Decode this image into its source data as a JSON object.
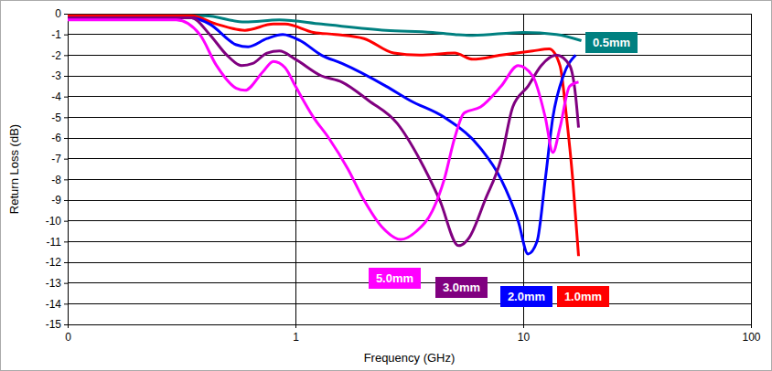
{
  "chart_data": {
    "type": "line",
    "x_label": "Frequency (GHz)",
    "y_label": "Return Loss (dB)",
    "log": "x",
    "grid": true,
    "xlim": [
      0.1,
      100
    ],
    "xticks": [
      {
        "value": 0.1,
        "label": "0"
      },
      1,
      10,
      100
    ],
    "ylim": [
      -15,
      0
    ],
    "yticks": [
      -15,
      -14,
      -13,
      -12,
      -11,
      -10,
      -9,
      -8,
      -7,
      -6,
      -5,
      -4,
      -3,
      -2,
      -1,
      0
    ],
    "series": [
      {
        "name": "0.5mm",
        "color": "#008080",
        "x": [
          0.1,
          0.4,
          0.6,
          0.85,
          1.3,
          2.5,
          4,
          5,
          6,
          10,
          14,
          18
        ],
        "values": [
          -0.1,
          -0.1,
          -0.4,
          -0.3,
          -0.5,
          -0.8,
          -0.9,
          -1.0,
          -1.05,
          -0.9,
          -1.0,
          -1.3
        ]
      },
      {
        "name": "1.0mm",
        "color": "#ff0000",
        "x": [
          0.1,
          0.35,
          0.45,
          0.6,
          0.8,
          0.9,
          1.2,
          1.5,
          2,
          2.7,
          3.5,
          5,
          6,
          8,
          11,
          13,
          14.5,
          15.5,
          16.5,
          17.5
        ],
        "values": [
          -0.1,
          -0.1,
          -0.5,
          -0.8,
          -0.5,
          -0.5,
          -0.9,
          -1.0,
          -1.2,
          -1.9,
          -2.0,
          -1.9,
          -2.2,
          -2.0,
          -1.8,
          -1.7,
          -2.5,
          -5,
          -8,
          -11.7
        ]
      },
      {
        "name": "2.0mm",
        "color": "#0000ff",
        "x": [
          0.1,
          0.35,
          0.42,
          0.55,
          0.62,
          0.75,
          0.88,
          1.05,
          1.3,
          1.6,
          2.5,
          3.2,
          4.5,
          6.5,
          8,
          9.5,
          10.5,
          11.5,
          12.5,
          13.5,
          15,
          17
        ],
        "values": [
          -0.2,
          -0.2,
          -0.5,
          -1.5,
          -1.6,
          -1.2,
          -1.0,
          -1.3,
          -2.0,
          -2.4,
          -3.5,
          -4.2,
          -5.0,
          -6.5,
          -8,
          -10,
          -11.6,
          -11,
          -8,
          -5,
          -3,
          -2
        ]
      },
      {
        "name": "3.0mm",
        "color": "#800080",
        "x": [
          0.1,
          0.35,
          0.42,
          0.5,
          0.58,
          0.65,
          0.75,
          0.85,
          1.0,
          1.3,
          1.6,
          2.1,
          2.8,
          3.5,
          4.3,
          5.2,
          5.8,
          6.8,
          8,
          9,
          10.5,
          12,
          14,
          16,
          17,
          17.5
        ],
        "values": [
          -0.2,
          -0.2,
          -1.0,
          -2.0,
          -2.5,
          -2.4,
          -1.9,
          -1.8,
          -2.2,
          -3.0,
          -3.3,
          -4.2,
          -5.3,
          -7,
          -9,
          -11.2,
          -10.8,
          -9,
          -7,
          -4.5,
          -3.5,
          -2.5,
          -2.0,
          -2.5,
          -4,
          -5.5
        ]
      },
      {
        "name": "5.0mm",
        "color": "#ff00ff",
        "x": [
          0.1,
          0.3,
          0.38,
          0.45,
          0.55,
          0.6,
          0.72,
          0.8,
          0.9,
          1.0,
          1.2,
          1.4,
          1.7,
          2.0,
          2.4,
          2.9,
          3.4,
          4,
          4.5,
          5,
          5.5,
          6.5,
          8,
          9.5,
          11,
          12.5,
          13.5,
          14.5,
          16,
          17.5
        ],
        "values": [
          -0.3,
          -0.3,
          -1,
          -2.5,
          -3.6,
          -3.7,
          -2.8,
          -2.3,
          -2.6,
          -3.5,
          -5,
          -6,
          -7.5,
          -9,
          -10.3,
          -10.9,
          -10.5,
          -9.5,
          -8,
          -6,
          -4.8,
          -4.5,
          -3.5,
          -2.5,
          -3,
          -5,
          -6.7,
          -5.5,
          -3.5,
          -3.3
        ]
      }
    ]
  }
}
